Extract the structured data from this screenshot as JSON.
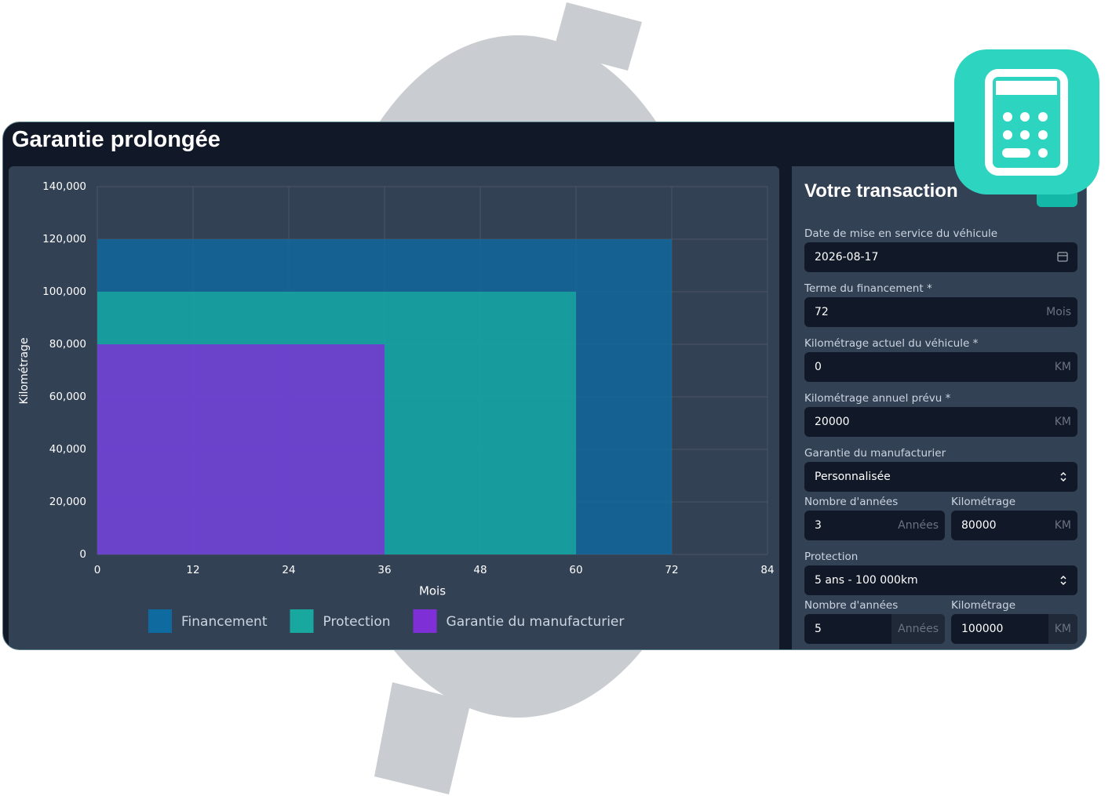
{
  "header": {
    "title": "Garantie prolongée"
  },
  "chart_data": {
    "type": "rect",
    "x_label": "Mois",
    "y_label": "Kilométrage",
    "xlim": [
      0,
      84
    ],
    "xticks": [
      0,
      12,
      24,
      36,
      48,
      60,
      72,
      84
    ],
    "ylim": [
      0,
      140000
    ],
    "yticks": [
      0,
      {
        "value": 20000,
        "label": "20,000"
      },
      {
        "value": 40000,
        "label": "40,000"
      },
      {
        "value": 60000,
        "label": "60,000"
      },
      {
        "value": 80000,
        "label": "80,000"
      },
      {
        "value": 100000,
        "label": "100,000"
      },
      {
        "value": 120000,
        "label": "120,000"
      },
      {
        "value": 140000,
        "label": "140,000"
      }
    ],
    "grid": true,
    "series": [
      {
        "name": "Financement",
        "color": "#0f6aa0",
        "months": 72,
        "km": 120000
      },
      {
        "name": "Protection",
        "color": "#18a8a0",
        "months": 60,
        "km": 100000
      },
      {
        "name": "Garantie du manufacturier",
        "color": "#7e2fd6",
        "months": 36,
        "km": 80000
      }
    ]
  },
  "form": {
    "title": "Votre transaction",
    "rows": [
      [
        {
          "label": "Date de mise en service du véhicule",
          "value": "2026-08-17"
        }
      ],
      [
        {
          "label": "Terme du financement *",
          "value": "72",
          "unit": "Mois"
        }
      ],
      [
        {
          "label": "Kilométrage actuel du véhicule *",
          "value": "0",
          "unit": "KM"
        }
      ],
      [
        {
          "label": "Kilométrage annuel prévu *",
          "value": "20000",
          "unit": "KM"
        }
      ],
      [
        {
          "label": "Garantie du manufacturier",
          "value": "Personnalisée"
        }
      ],
      [
        {
          "label": "Nombre d'années",
          "value": "3",
          "unit": "Années"
        },
        {
          "label": "Kilométrage",
          "value": "80000",
          "unit": "KM"
        }
      ],
      [
        {
          "label": "Protection",
          "value": "5 ans - 100 000km"
        }
      ],
      [
        {
          "label": "Nombre d'années",
          "value": "5",
          "unit": "Années"
        },
        {
          "label": "Kilométrage",
          "value": "100000",
          "unit": "KM"
        }
      ]
    ]
  }
}
